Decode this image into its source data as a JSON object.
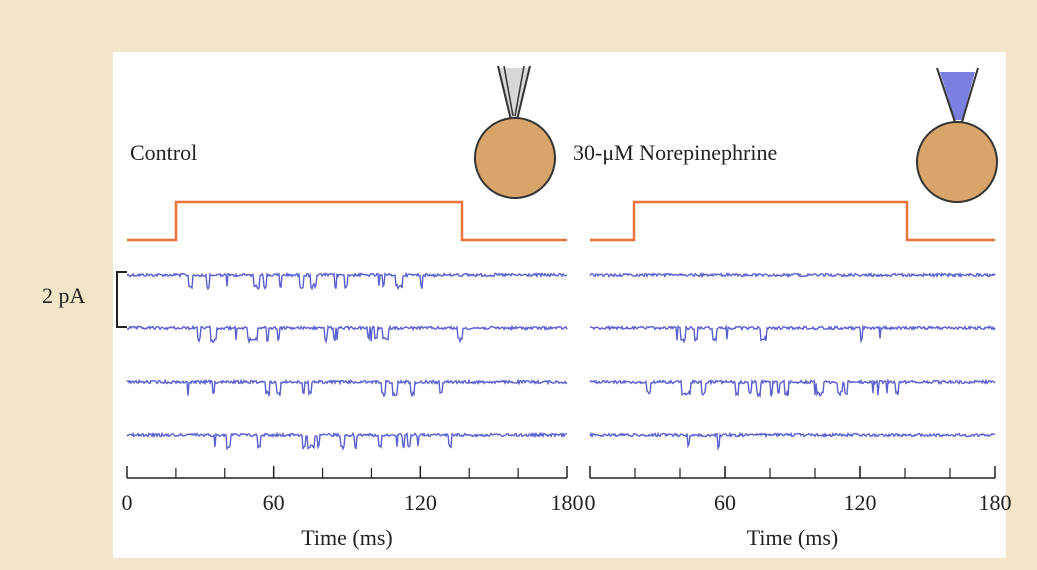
{
  "scale_bar": {
    "label": "2 pA"
  },
  "panels": [
    {
      "label": "Control",
      "xlim": [
        0,
        180
      ],
      "xticks": [
        0,
        60,
        120,
        180
      ],
      "xlabel": "Time (ms)"
    },
    {
      "label": "30-μM Norepinephrine",
      "xlim": [
        0,
        180
      ],
      "xticks": [
        0,
        60,
        120,
        180
      ],
      "xlabel": "Time (ms)"
    }
  ]
}
